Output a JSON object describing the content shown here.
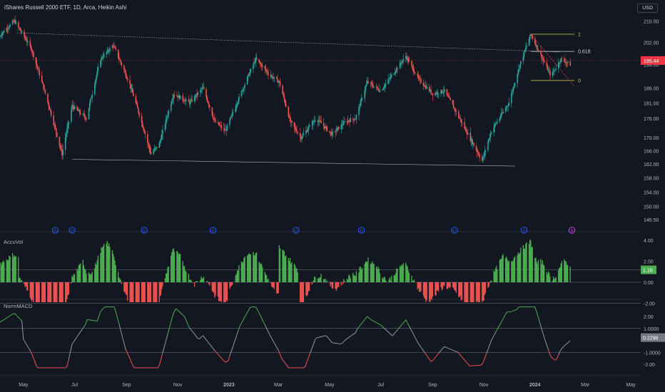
{
  "header": {
    "title": "iShares Russell 2000 ETF, 1D, Arca, Heikin Ashi",
    "currency": "USD"
  },
  "colors": {
    "background": "#131722",
    "up": "#26a69a",
    "down": "#ef5350",
    "fib": "#c7c75a",
    "price_tag": "#f23645",
    "hist_up": "#4caf50",
    "hist_down": "#ef5350",
    "macd_up": "#4caf50",
    "macd_down": "#ef5350",
    "macd_neutral": "#9598a1",
    "dividend": "#2962ff",
    "split": "#e040fb"
  },
  "price_axis": {
    "ticks": [
      "210.00",
      "202.00",
      "194.00",
      "186.00",
      "181.00",
      "176.00",
      "170.00",
      "166.00",
      "162.00",
      "158.00",
      "154.00",
      "150.00",
      "146.50"
    ],
    "current_price": "195.44"
  },
  "fib_levels": [
    {
      "label": "1"
    },
    {
      "label": "0.618"
    },
    {
      "label": "0"
    }
  ],
  "time_axis": {
    "labels": [
      "May",
      "Jul",
      "Sep",
      "Nov",
      "2023",
      "Mar",
      "May",
      "Jul",
      "Sep",
      "Nov",
      "2024",
      "Mar",
      "May"
    ]
  },
  "events": {
    "dividend_marker": "D",
    "split_marker": "S",
    "dividend_count": 8
  },
  "accuvol": {
    "title": "AccuVol",
    "ticks": [
      "4.00",
      "2.00",
      "0.00",
      "-2.00"
    ],
    "current_value": "1.18"
  },
  "normmacd": {
    "title": "NormMACD",
    "ticks": [
      "2.00",
      "1.0000",
      "0.2296",
      "-1.0000",
      "-2.00"
    ],
    "current_value": "0.2296"
  },
  "chart_data": {
    "type": "candlestick",
    "style": "Heikin Ashi",
    "x_range": [
      "2022-04",
      "2024-05"
    ],
    "y_scale": "log",
    "ylim": [
      146.5,
      212
    ],
    "price_path": [
      [
        "2022-04-01",
        204
      ],
      [
        "2022-04-20",
        210
      ],
      [
        "2022-05-10",
        200
      ],
      [
        "2022-05-25",
        186
      ],
      [
        "2022-06-16",
        165
      ],
      [
        "2022-06-28",
        180
      ],
      [
        "2022-07-15",
        176
      ],
      [
        "2022-08-01",
        196
      ],
      [
        "2022-08-16",
        201
      ],
      [
        "2022-09-05",
        187
      ],
      [
        "2022-09-30",
        165
      ],
      [
        "2022-10-10",
        168
      ],
      [
        "2022-10-27",
        184
      ],
      [
        "2022-11-15",
        181
      ],
      [
        "2022-12-01",
        186
      ],
      [
        "2022-12-15",
        175
      ],
      [
        "2022-12-28",
        172
      ],
      [
        "2023-01-15",
        184
      ],
      [
        "2023-02-02",
        196
      ],
      [
        "2023-02-20",
        190
      ],
      [
        "2023-03-02",
        188
      ],
      [
        "2023-03-15",
        175
      ],
      [
        "2023-03-28",
        170
      ],
      [
        "2023-04-15",
        176
      ],
      [
        "2023-05-04",
        171
      ],
      [
        "2023-05-20",
        175
      ],
      [
        "2023-06-01",
        176
      ],
      [
        "2023-06-15",
        188
      ],
      [
        "2023-07-01",
        185
      ],
      [
        "2023-07-31",
        197
      ],
      [
        "2023-08-15",
        189
      ],
      [
        "2023-09-01",
        184
      ],
      [
        "2023-09-15",
        185
      ],
      [
        "2023-10-01",
        177
      ],
      [
        "2023-10-15",
        170
      ],
      [
        "2023-10-30",
        163
      ],
      [
        "2023-11-10",
        172
      ],
      [
        "2023-12-01",
        181
      ],
      [
        "2023-12-14",
        194
      ],
      [
        "2023-12-27",
        205
      ],
      [
        "2024-01-10",
        196
      ],
      [
        "2024-01-20",
        190
      ],
      [
        "2024-02-01",
        196
      ],
      [
        "2024-02-12",
        194
      ]
    ],
    "accuvol_range": [
      -2,
      4.2
    ],
    "macd_range": [
      -2.5,
      3
    ]
  }
}
